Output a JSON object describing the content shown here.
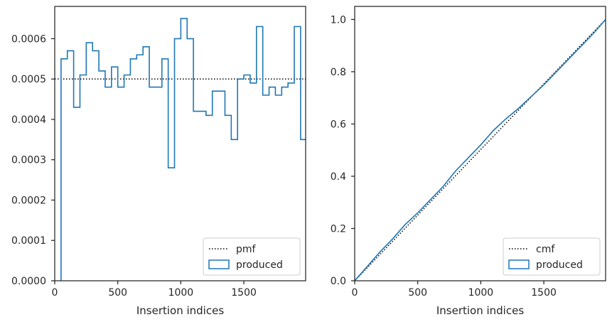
{
  "chart_data": [
    {
      "type": "step",
      "xlabel": "Insertion indices",
      "ylabel": "",
      "xlim": [
        0,
        1990
      ],
      "ylim": [
        0,
        0.00068
      ],
      "xticks": [
        0,
        500,
        1000,
        1500
      ],
      "xtick_labels": [
        "0",
        "500",
        "1000",
        "1500"
      ],
      "yticks": [
        0,
        0.0001,
        0.0002,
        0.0003,
        0.0004,
        0.0005,
        0.0006
      ],
      "ytick_labels": [
        "0.0000",
        "0.0001",
        "0.0002",
        "0.0003",
        "0.0004",
        "0.0005",
        "0.0006"
      ],
      "legend_position": "lower-right",
      "series": [
        {
          "name": "pmf",
          "style": "dotted",
          "color": "#000000",
          "x": [
            0,
            1990
          ],
          "y": [
            0.0005,
            0.0005
          ]
        },
        {
          "name": "produced",
          "style": "step",
          "color": "#1f77b4",
          "bin_edges": [
            50,
            100,
            150,
            200,
            250,
            300,
            350,
            400,
            450,
            500,
            550,
            600,
            650,
            700,
            750,
            800,
            850,
            900,
            950,
            1000,
            1050,
            1100,
            1150,
            1200,
            1250,
            1300,
            1350,
            1400,
            1450,
            1500,
            1550,
            1600,
            1650,
            1700,
            1750,
            1800,
            1850,
            1900,
            1950,
            2000
          ],
          "values": [
            0.00055,
            0.00057,
            0.00043,
            0.00051,
            0.00059,
            0.00057,
            0.00052,
            0.00048,
            0.00053,
            0.00048,
            0.00051,
            0.00055,
            0.00056,
            0.00058,
            0.00048,
            0.00048,
            0.00055,
            0.00028,
            0.0006,
            0.00065,
            0.0006,
            0.00042,
            0.00042,
            0.00041,
            0.00047,
            0.00047,
            0.00041,
            0.00035,
            0.0005,
            0.00051,
            0.00049,
            0.00063,
            0.00046,
            0.00048,
            0.00046,
            0.00048,
            0.00049,
            0.00063,
            0.00035
          ]
        }
      ]
    },
    {
      "type": "line",
      "xlabel": "Insertion indices",
      "ylabel": "",
      "xlim": [
        0,
        1990
      ],
      "ylim": [
        0,
        1.05
      ],
      "xticks": [
        0,
        500,
        1000,
        1500
      ],
      "xtick_labels": [
        "0",
        "500",
        "1000",
        "1500"
      ],
      "yticks": [
        0,
        0.2,
        0.4,
        0.6,
        0.8,
        1.0
      ],
      "ytick_labels": [
        "0.0",
        "0.2",
        "0.4",
        "0.6",
        "0.8",
        "1.0"
      ],
      "legend_position": "lower-right",
      "series": [
        {
          "name": "cmf",
          "style": "dotted",
          "color": "#000000",
          "x": [
            0,
            1990
          ],
          "y": [
            0,
            1.0
          ]
        },
        {
          "name": "produced",
          "style": "line",
          "color": "#1f77b4",
          "x": [
            0,
            100,
            200,
            300,
            400,
            500,
            600,
            700,
            800,
            900,
            1000,
            1100,
            1200,
            1300,
            1400,
            1500,
            1600,
            1700,
            1800,
            1900,
            1990
          ],
          "y": [
            0,
            0.055,
            0.11,
            0.16,
            0.215,
            0.26,
            0.31,
            0.36,
            0.42,
            0.47,
            0.52,
            0.575,
            0.62,
            0.66,
            0.705,
            0.75,
            0.8,
            0.85,
            0.9,
            0.95,
            1.0
          ]
        }
      ]
    }
  ]
}
